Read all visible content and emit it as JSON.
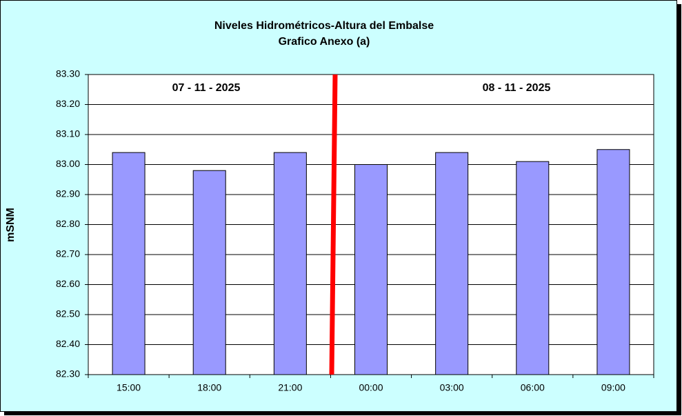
{
  "chart_data": {
    "type": "bar",
    "title": "Niveles Hidrométricos-Altura del Embalse",
    "subtitle": "Grafico Anexo (a)",
    "y_label": "mSNM",
    "annotations": [
      "07 - 11 - 2025",
      "08 - 11 - 2025"
    ],
    "categories": [
      "15:00",
      "18:00",
      "21:00",
      "00:00",
      "03:00",
      "06:00",
      "09:00"
    ],
    "values": [
      83.04,
      82.98,
      83.04,
      83.0,
      83.04,
      83.01,
      83.05
    ],
    "color": "#9999ff",
    "ylim": [
      82.3,
      83.3
    ],
    "yticks": [
      {
        "value": 82.3,
        "label": "82.30"
      },
      {
        "value": 82.4,
        "label": "82.40"
      },
      {
        "value": 82.5,
        "label": "82.50"
      },
      {
        "value": 82.6,
        "label": "82.60"
      },
      {
        "value": 82.7,
        "label": "82.70"
      },
      {
        "value": 82.8,
        "label": "82.80"
      },
      {
        "value": 82.9,
        "label": "82.90"
      },
      {
        "value": 83.0,
        "label": "83.00"
      },
      {
        "value": 83.1,
        "label": "83.10"
      },
      {
        "value": 83.2,
        "label": "83.20"
      },
      {
        "value": 83.3,
        "label": "83.30"
      }
    ],
    "grid": true
  }
}
